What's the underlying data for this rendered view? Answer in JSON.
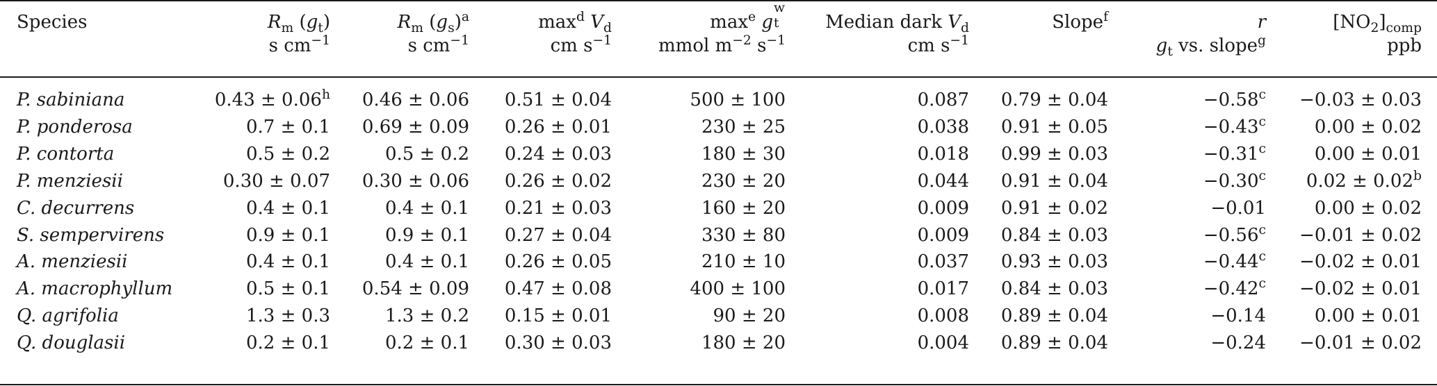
{
  "table": {
    "header": {
      "species": "Species",
      "rm_gt": {
        "R": "R",
        "m": "m",
        "pre": " (",
        "g": "g",
        "t": "t",
        "post": ")",
        "unit": "s cm",
        "exp": "−1"
      },
      "rm_gs": {
        "R": "R",
        "m": "m",
        "pre": " (",
        "g": "g",
        "s": "s",
        "post": ")",
        "sup": "a",
        "unit": "s cm",
        "exp": "−1"
      },
      "maxvd": {
        "max": "max",
        "sup": "d",
        "V": " V",
        "sub": "d",
        "unit": "cm s",
        "exp": "−1"
      },
      "maxgt": {
        "max": "max",
        "sup": "e",
        "g": " g",
        "gsup": "w",
        "gsub": "t",
        "unit1": "mmol m",
        "exp1": "−2",
        "unit2": " s",
        "exp2": "−1"
      },
      "dark": {
        "label": "Median dark ",
        "V": "V",
        "sub": "d",
        "unit": "cm s",
        "exp": "−1"
      },
      "slope": {
        "label": "Slope",
        "sup": "f"
      },
      "r": {
        "r": "r",
        "g": "g",
        "gsub": "t",
        "vs": " vs. slope",
        "sup": "g"
      },
      "no2": {
        "pre": "[NO",
        "sub2": "2",
        "post": "]",
        "comp": "comp",
        "unit": "ppb"
      }
    },
    "rows": [
      {
        "species": "P. sabiniana",
        "rm_gt": "0.43 ± 0.06",
        "rm_gt_sup": "h",
        "rm_gs": "0.46 ± 0.06",
        "maxvd": "0.51 ± 0.04",
        "maxgt": "500 ± 100",
        "dark": "0.087",
        "slope": "0.79 ± 0.04",
        "r": "−0.58",
        "r_sup": "c",
        "no2": "−0.03 ± 0.03",
        "no2_sup": ""
      },
      {
        "species": "P. ponderosa",
        "rm_gt": "0.7 ± 0.1",
        "rm_gt_sup": "",
        "rm_gs": "0.69 ± 0.09",
        "maxvd": "0.26 ± 0.01",
        "maxgt": "230 ± 25",
        "dark": "0.038",
        "slope": "0.91 ± 0.05",
        "r": "−0.43",
        "r_sup": "c",
        "no2": "0.00 ± 0.02",
        "no2_sup": ""
      },
      {
        "species": "P. contorta",
        "rm_gt": "0.5 ± 0.2",
        "rm_gt_sup": "",
        "rm_gs": "0.5 ± 0.2",
        "maxvd": "0.24 ± 0.03",
        "maxgt": "180 ± 30",
        "dark": "0.018",
        "slope": "0.99 ± 0.03",
        "r": "−0.31",
        "r_sup": "c",
        "no2": "0.00 ± 0.01",
        "no2_sup": ""
      },
      {
        "species": "P. menziesii",
        "rm_gt": "0.30 ± 0.07",
        "rm_gt_sup": "",
        "rm_gs": "0.30 ± 0.06",
        "maxvd": "0.26 ± 0.02",
        "maxgt": "230 ± 20",
        "dark": "0.044",
        "slope": "0.91 ± 0.04",
        "r": "−0.30",
        "r_sup": "c",
        "no2": "0.02 ± 0.02",
        "no2_sup": "b"
      },
      {
        "species": "C. decurrens",
        "rm_gt": "0.4 ± 0.1",
        "rm_gt_sup": "",
        "rm_gs": "0.4 ± 0.1",
        "maxvd": "0.21 ± 0.03",
        "maxgt": "160 ± 20",
        "dark": "0.009",
        "slope": "0.91 ± 0.02",
        "r": "−0.01",
        "r_sup": "",
        "no2": "0.00 ± 0.02",
        "no2_sup": ""
      },
      {
        "species": "S. sempervirens",
        "rm_gt": "0.9 ± 0.1",
        "rm_gt_sup": "",
        "rm_gs": "0.9 ± 0.1",
        "maxvd": "0.27 ± 0.04",
        "maxgt": "330 ± 80",
        "dark": "0.009",
        "slope": "0.84 ± 0.03",
        "r": "−0.56",
        "r_sup": "c",
        "no2": "−0.01 ± 0.02",
        "no2_sup": ""
      },
      {
        "species": "A. menziesii",
        "rm_gt": "0.4 ± 0.1",
        "rm_gt_sup": "",
        "rm_gs": "0.4 ± 0.1",
        "maxvd": "0.26 ± 0.05",
        "maxgt": "210 ± 10",
        "dark": "0.037",
        "slope": "0.93 ± 0.03",
        "r": "−0.44",
        "r_sup": "c",
        "no2": "−0.02 ± 0.01",
        "no2_sup": ""
      },
      {
        "species": "A. macrophyllum",
        "rm_gt": "0.5 ± 0.1",
        "rm_gt_sup": "",
        "rm_gs": "0.54 ± 0.09",
        "maxvd": "0.47 ± 0.08",
        "maxgt": "400 ± 100",
        "dark": "0.017",
        "slope": "0.84 ± 0.03",
        "r": "−0.42",
        "r_sup": "c",
        "no2": "−0.02 ± 0.01",
        "no2_sup": ""
      },
      {
        "species": "Q. agrifolia",
        "rm_gt": "1.3 ± 0.3",
        "rm_gt_sup": "",
        "rm_gs": "1.3 ± 0.2",
        "maxvd": "0.15 ± 0.01",
        "maxgt": "90 ± 20",
        "dark": "0.008",
        "slope": "0.89 ± 0.04",
        "r": "−0.14",
        "r_sup": "",
        "no2": "0.00 ± 0.01",
        "no2_sup": ""
      },
      {
        "species": "Q. douglasii",
        "rm_gt": "0.2 ± 0.1",
        "rm_gt_sup": "",
        "rm_gs": "0.2 ± 0.1",
        "maxvd": "0.30 ± 0.03",
        "maxgt": "180 ± 20",
        "dark": "0.004",
        "slope": "0.89 ± 0.04",
        "r": "−0.24",
        "r_sup": "",
        "no2": "−0.01 ± 0.02",
        "no2_sup": ""
      }
    ]
  }
}
